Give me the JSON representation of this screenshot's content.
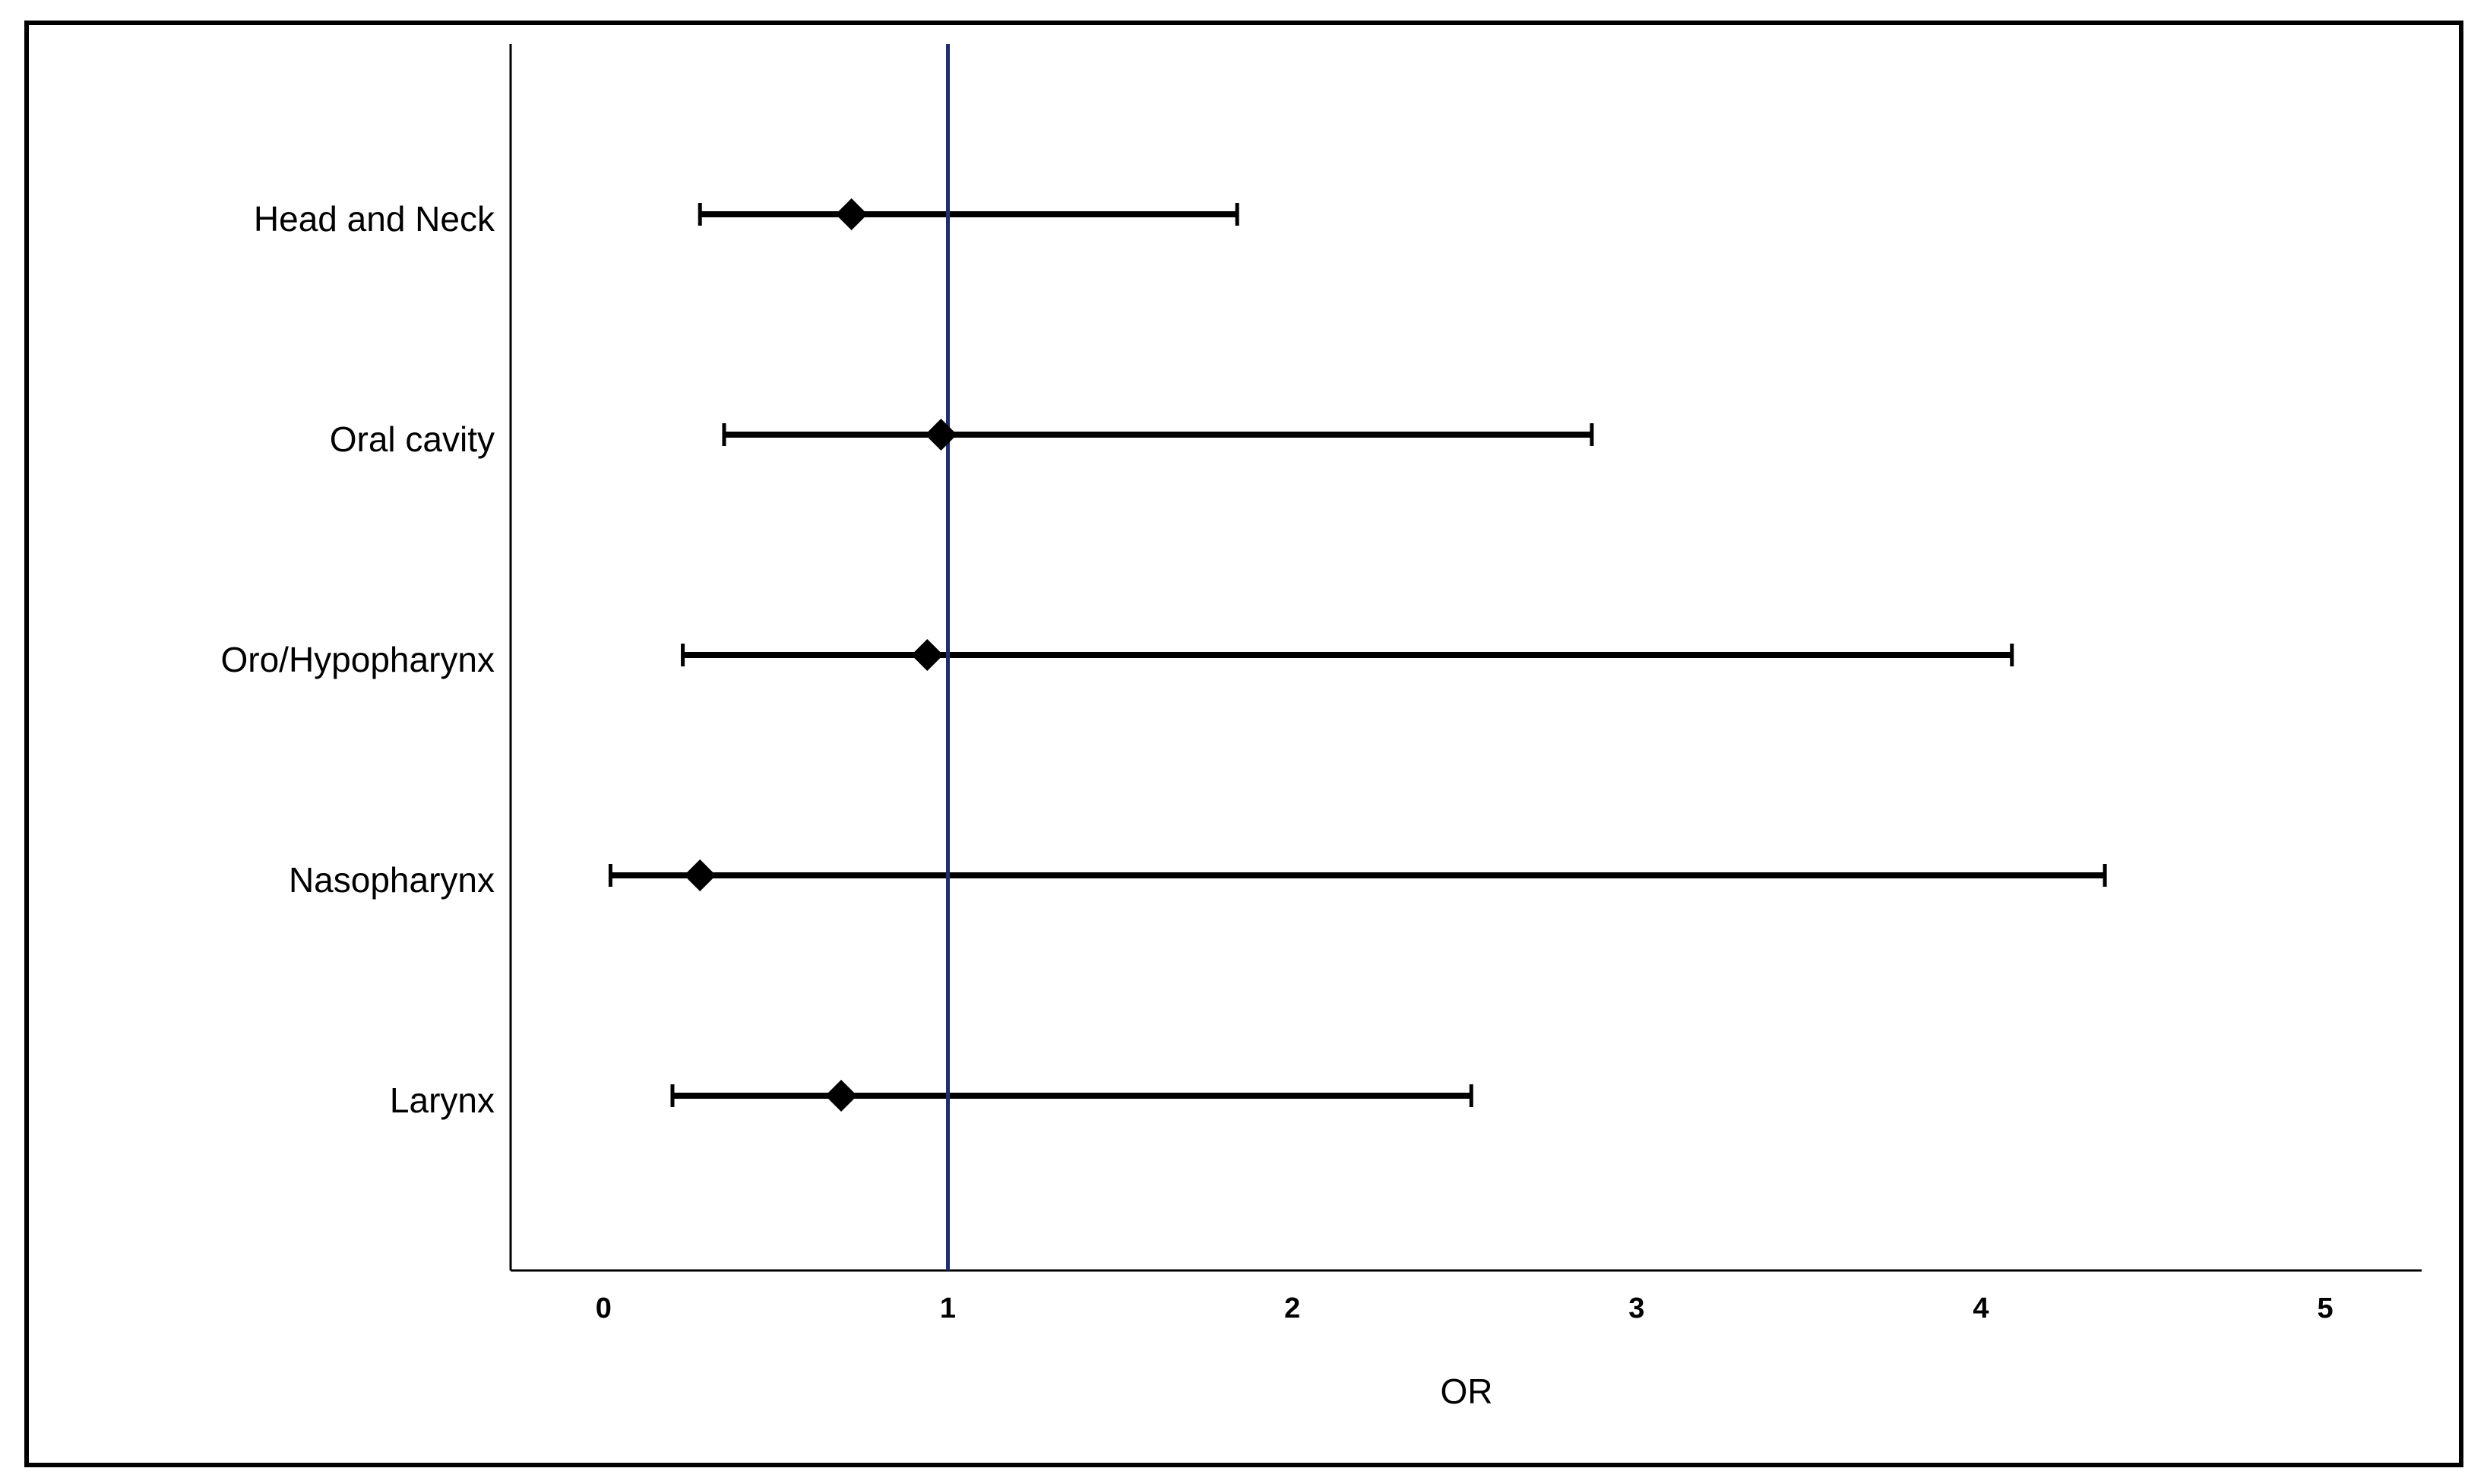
{
  "chart_data": {
    "type": "forest",
    "categories": [
      "Head and Neck",
      "Oral cavity",
      "Oro/Hypopharynx",
      "Nasopharynx",
      "Larynx"
    ],
    "values": [
      0.72,
      0.98,
      0.94,
      0.28,
      0.69
    ],
    "lower": [
      0.28,
      0.35,
      0.23,
      0.02,
      0.2
    ],
    "upper": [
      1.84,
      2.87,
      4.09,
      4.36,
      2.52
    ],
    "color": "#000000",
    "ref_line": 1,
    "ref_color": "#1f2f6b",
    "xlabel": "OR",
    "xlim": [
      -0.27,
      5.28
    ],
    "xticks": [
      0,
      1,
      2,
      3,
      4,
      5
    ],
    "grid": false
  }
}
